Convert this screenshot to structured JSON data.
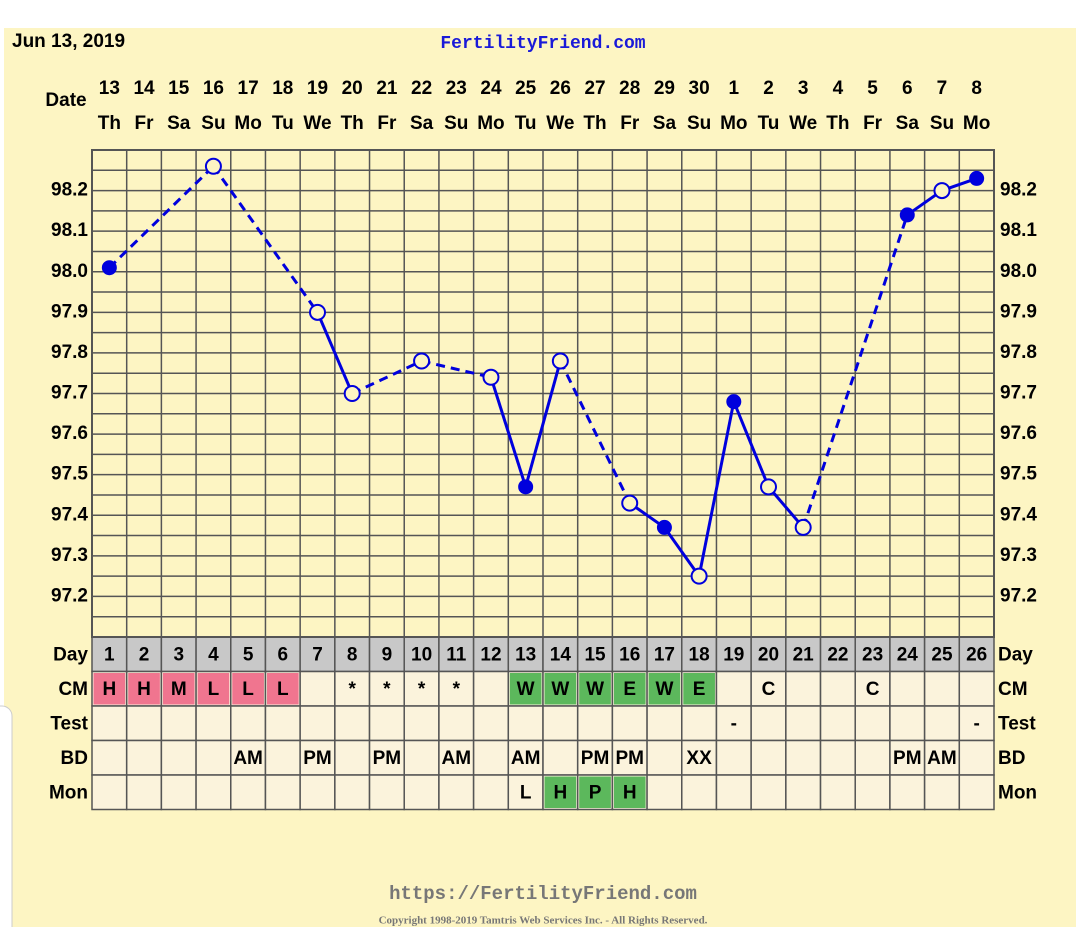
{
  "chart_data": {
    "type": "line",
    "header_date": "Jun 13, 2019",
    "site": "FertilityFriend.com",
    "date_label": "Date",
    "dates": [
      13,
      14,
      15,
      16,
      17,
      18,
      19,
      20,
      21,
      22,
      23,
      24,
      25,
      26,
      27,
      28,
      29,
      30,
      1,
      2,
      3,
      4,
      5,
      6,
      7,
      8
    ],
    "weekdays": [
      "Th",
      "Fr",
      "Sa",
      "Su",
      "Mo",
      "Tu",
      "We",
      "Th",
      "Fr",
      "Sa",
      "Su",
      "Mo",
      "Tu",
      "We",
      "Th",
      "Fr",
      "Sa",
      "Su",
      "Mo",
      "Tu",
      "We",
      "Th",
      "Fr",
      "Sa",
      "Su",
      "Mo"
    ],
    "day_label": "Day",
    "days": [
      1,
      2,
      3,
      4,
      5,
      6,
      7,
      8,
      9,
      10,
      11,
      12,
      13,
      14,
      15,
      16,
      17,
      18,
      19,
      20,
      21,
      22,
      23,
      24,
      25,
      26
    ],
    "xlim": [
      0.5,
      26.5
    ],
    "ylim": [
      97.1,
      98.3
    ],
    "yticks": [
      98.2,
      98.1,
      {
        "value": 98,
        "label": "98.0"
      },
      97.9,
      97.8,
      97.7,
      97.6,
      97.5,
      97.4,
      97.3,
      97.2
    ],
    "ygrid": [
      97.1,
      97.15,
      97.2,
      97.25,
      97.3,
      97.35,
      97.4,
      97.45,
      97.5,
      97.55,
      97.6,
      97.65,
      97.7,
      97.75,
      97.8,
      97.85,
      97.9,
      97.95,
      98,
      98.05,
      98.1,
      98.15,
      98.2,
      98.25,
      98.3
    ],
    "series": [
      {
        "color": "#0000dd",
        "x": [
          1,
          4,
          7,
          8,
          10,
          12,
          13,
          14,
          16,
          17,
          18,
          19,
          20,
          21,
          24,
          25,
          26
        ],
        "values": [
          98.01,
          98.26,
          97.9,
          97.7,
          97.78,
          97.74,
          97.47,
          97.78,
          97.43,
          97.37,
          97.25,
          97.68,
          97.47,
          97.37,
          98.14,
          98.2,
          98.23
        ],
        "open": [
          false,
          true,
          true,
          true,
          true,
          true,
          false,
          true,
          true,
          false,
          true,
          false,
          true,
          true,
          false,
          true,
          false
        ]
      }
    ],
    "rows": [
      {
        "label": "CM",
        "cells": [
          "H",
          "H",
          "M",
          "L",
          "L",
          "L",
          null,
          "*",
          "*",
          "*",
          "*",
          null,
          "W",
          "W",
          "W",
          "E",
          "W",
          "E",
          null,
          "C",
          null,
          null,
          "C",
          null,
          null,
          null
        ],
        "highlight": {
          "H": "#f0758f",
          "M": "#f0758f",
          "L": "#f0758f",
          "W": "#5cb85c",
          "E": "#5cb85c"
        }
      },
      {
        "label": "Test",
        "cells": [
          null,
          null,
          null,
          null,
          null,
          null,
          null,
          null,
          null,
          null,
          null,
          null,
          null,
          null,
          null,
          null,
          null,
          null,
          "-",
          null,
          null,
          null,
          null,
          null,
          null,
          "-"
        ]
      },
      {
        "label": "BD",
        "cells": [
          null,
          null,
          null,
          null,
          "AM",
          null,
          "PM",
          null,
          "PM",
          null,
          "AM",
          null,
          "AM",
          null,
          "PM",
          "PM",
          null,
          "XX",
          null,
          null,
          null,
          null,
          null,
          "PM",
          "AM",
          null
        ]
      },
      {
        "label": "Mon",
        "cells": [
          null,
          null,
          null,
          null,
          null,
          null,
          null,
          null,
          null,
          null,
          null,
          null,
          "L",
          "H",
          "P",
          "H",
          null,
          null,
          null,
          null,
          null,
          null,
          null,
          null,
          null,
          null
        ],
        "highlight": {
          "H": "#5cb85c",
          "P": "#5cb85c"
        }
      }
    ],
    "footer_url": "https://FertilityFriend.com",
    "copyright": "Copyright 1998-2019 Tamtris Web Services Inc. - All Rights Reserved."
  }
}
